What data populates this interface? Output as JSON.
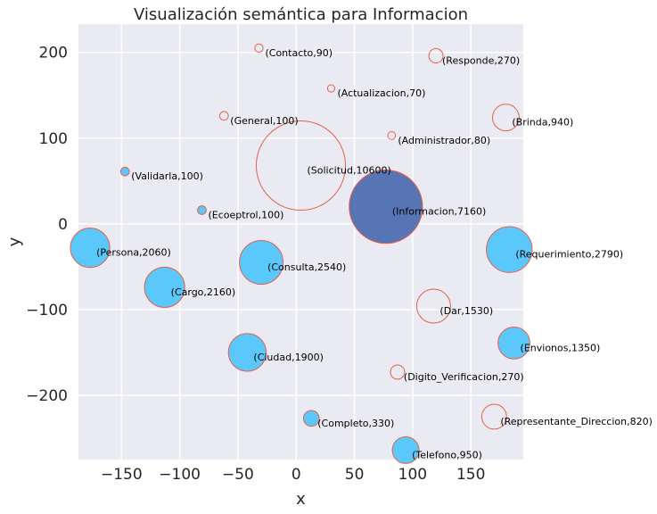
{
  "chart_data": {
    "type": "scatter",
    "title": "Visualización semántica para Informacion",
    "xlabel": "x",
    "ylabel": "y",
    "xlim": [
      -187,
      195
    ],
    "ylim": [
      -275,
      233
    ],
    "xticks": [
      -150,
      -100,
      -50,
      0,
      50,
      100,
      150
    ],
    "yticks": [
      -200,
      -100,
      0,
      100,
      200
    ],
    "grid": true,
    "colors": {
      "background": "#eaeaf2",
      "grid": "#ffffff",
      "edge": "#e8604c",
      "fill_main": "#4f6fb0",
      "fill_related": "#5ac8fa"
    },
    "points": [
      {
        "label": "(Contacto,90)",
        "x": -32,
        "y": 205,
        "size": 90,
        "fill": "none"
      },
      {
        "label": "(Responde,270)",
        "x": 120,
        "y": 196,
        "size": 270,
        "fill": "none"
      },
      {
        "label": "(Actualizacion,70)",
        "x": 30,
        "y": 158,
        "size": 70,
        "fill": "none"
      },
      {
        "label": "(General,100)",
        "x": -62,
        "y": 126,
        "size": 100,
        "fill": "none"
      },
      {
        "label": "(Brinda,940)",
        "x": 180,
        "y": 124,
        "size": 940,
        "fill": "none"
      },
      {
        "label": "(Administrador,80)",
        "x": 82,
        "y": 103,
        "size": 80,
        "fill": "none"
      },
      {
        "label": "(Validarla,100)",
        "x": -147,
        "y": 61,
        "size": 100,
        "fill": "related"
      },
      {
        "label": "(Solicitud,10600)",
        "x": 4,
        "y": 68,
        "size": 10600,
        "fill": "none"
      },
      {
        "label": "(Informacion,7160)",
        "x": 77,
        "y": 20,
        "size": 7160,
        "fill": "main"
      },
      {
        "label": "(Ecoeptrol,100)",
        "x": -81,
        "y": 16,
        "size": 100,
        "fill": "related"
      },
      {
        "label": "(Persona,2060)",
        "x": -177,
        "y": -28,
        "size": 2060,
        "fill": "related"
      },
      {
        "label": "(Requerimiento,2790)",
        "x": 183,
        "y": -30,
        "size": 2790,
        "fill": "related"
      },
      {
        "label": "(Consulta,2540)",
        "x": -30,
        "y": -45,
        "size": 2540,
        "fill": "related"
      },
      {
        "label": "(Cargo,2160)",
        "x": -113,
        "y": -74,
        "size": 2160,
        "fill": "related"
      },
      {
        "label": "(Dar,1530)",
        "x": 118,
        "y": -96,
        "size": 1530,
        "fill": "none"
      },
      {
        "label": "(Envionos,1350)",
        "x": 187,
        "y": -139,
        "size": 1350,
        "fill": "related"
      },
      {
        "label": "(Ciudad,1900)",
        "x": -42,
        "y": -150,
        "size": 1900,
        "fill": "related"
      },
      {
        "label": "(Digito_Verificacion,270)",
        "x": 87,
        "y": -173,
        "size": 270,
        "fill": "none"
      },
      {
        "label": "(Representante_Direccion,820)",
        "x": 170,
        "y": -225,
        "size": 820,
        "fill": "none"
      },
      {
        "label": "(Completo,330)",
        "x": 13,
        "y": -227,
        "size": 330,
        "fill": "related"
      },
      {
        "label": "(Telefono,950)",
        "x": 94,
        "y": -264,
        "size": 950,
        "fill": "related"
      }
    ]
  }
}
